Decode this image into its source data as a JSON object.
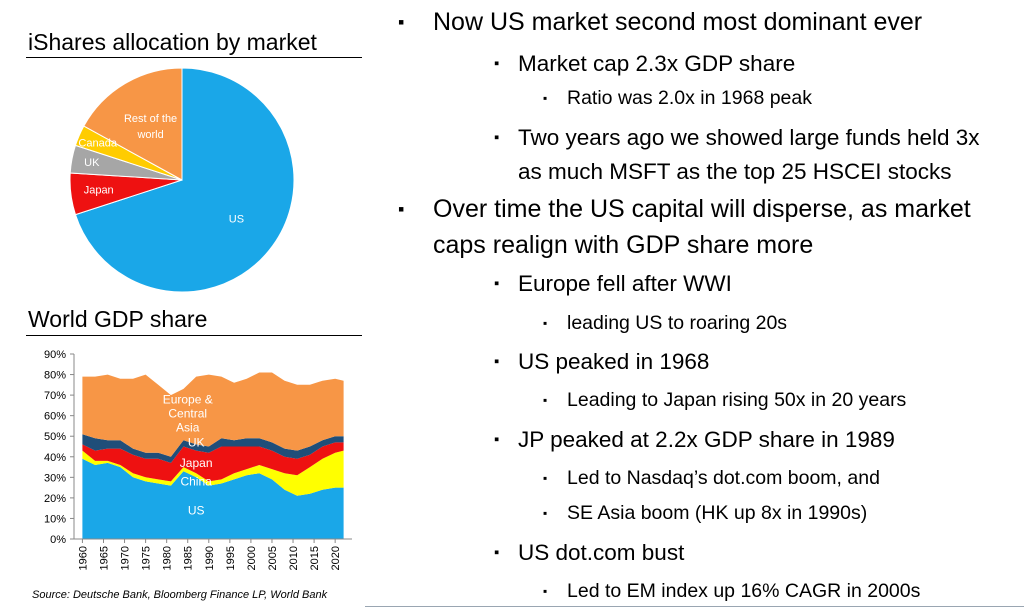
{
  "charts": {
    "pie_title": "iShares allocation by market",
    "gdp_title": "World GDP share",
    "source": "Source: Deutsche Bank, Bloomberg Finance LP, World Bank"
  },
  "chart_data": [
    {
      "type": "pie",
      "title": "iShares allocation by market",
      "labels": [
        "US",
        "Japan",
        "UK",
        "Canada",
        "Rest of the world"
      ],
      "values": [
        70,
        6,
        4,
        3,
        17
      ],
      "colors": [
        "#1aa7e8",
        "#ee1111",
        "#a6a6a6",
        "#ffcc00",
        "#f79646"
      ]
    },
    {
      "type": "area",
      "title": "World GDP share",
      "stacked": true,
      "x": [
        1960,
        1963,
        1966,
        1969,
        1972,
        1975,
        1978,
        1981,
        1984,
        1987,
        1990,
        1993,
        1996,
        1999,
        2002,
        2005,
        2008,
        2011,
        2014,
        2017,
        2020,
        2022
      ],
      "ylim": [
        0,
        90
      ],
      "yticks": [
        "0%",
        "10%",
        "20%",
        "30%",
        "40%",
        "50%",
        "60%",
        "70%",
        "80%",
        "90%"
      ],
      "xticks": [
        "1960",
        "1965",
        "1970",
        "1975",
        "1980",
        "1985",
        "1990",
        "1995",
        "2000",
        "2005",
        "2010",
        "2015",
        "2020"
      ],
      "series": [
        {
          "name": "US",
          "color": "#1aa7e8",
          "values": [
            39,
            36,
            37,
            35,
            30,
            28,
            27,
            26,
            33,
            30,
            26,
            27,
            29,
            31,
            32,
            29,
            24,
            21,
            22,
            24,
            25,
            25
          ]
        },
        {
          "name": "China",
          "color": "#ffff00",
          "values": [
            4,
            2,
            1,
            1,
            2,
            2,
            2,
            2,
            2,
            2,
            2,
            2,
            3,
            3,
            4,
            5,
            8,
            10,
            13,
            15,
            17,
            18
          ]
        },
        {
          "name": "Japan",
          "color": "#ee1111",
          "values": [
            3,
            5,
            6,
            8,
            9,
            9,
            10,
            9,
            10,
            11,
            14,
            16,
            13,
            11,
            9,
            9,
            8,
            8,
            6,
            6,
            5,
            4
          ]
        },
        {
          "name": "UK",
          "color": "#1f4e79",
          "values": [
            5,
            6,
            4,
            4,
            3,
            3,
            3,
            3,
            3,
            3,
            3,
            4,
            3,
            4,
            4,
            4,
            4,
            4,
            4,
            3,
            3,
            3
          ]
        },
        {
          "name": "Europe & Central Asia",
          "color": "#f79646",
          "values": [
            28,
            30,
            32,
            30,
            34,
            38,
            33,
            30,
            25,
            33,
            35,
            30,
            28,
            29,
            32,
            34,
            33,
            32,
            30,
            29,
            28,
            27
          ]
        }
      ],
      "annotations": [
        "Europe & Central Asia",
        "UK",
        "Japan",
        "China",
        "US"
      ]
    }
  ],
  "bullets": [
    {
      "level": 1,
      "marker": "▪",
      "lines": [
        "Now US market second most dominant ever"
      ]
    },
    {
      "level": 2,
      "marker": "▪",
      "lines": [
        "Market cap 2.3x GDP share"
      ]
    },
    {
      "level": 3,
      "marker": "▪",
      "lines": [
        "Ratio was 2.0x in 1968 peak"
      ]
    },
    {
      "level": 2,
      "marker": "▪",
      "lines": [
        "Two years ago we showed large funds held 3x",
        "as much MSFT as the top 25 HSCEI stocks"
      ]
    },
    {
      "level": 1,
      "marker": "▪",
      "lines": [
        "Over time the US capital will disperse, as market",
        "caps realign with GDP share more"
      ]
    },
    {
      "level": 2,
      "marker": "▪",
      "lines": [
        "Europe fell after WWI"
      ]
    },
    {
      "level": 3,
      "marker": "▪",
      "lines": [
        "leading US to roaring 20s"
      ]
    },
    {
      "level": 2,
      "marker": "▪",
      "lines": [
        "US peaked in 1968"
      ]
    },
    {
      "level": 3,
      "marker": "▪",
      "lines": [
        "Leading to Japan rising 50x in 20 years"
      ]
    },
    {
      "level": 2,
      "marker": "▪",
      "lines": [
        "JP peaked at 2.2x GDP share in 1989"
      ]
    },
    {
      "level": 3,
      "marker": "▪",
      "lines": [
        "Led to Nasdaq’s dot.com boom, and"
      ]
    },
    {
      "level": 3,
      "marker": "▪",
      "lines": [
        "SE Asia boom (HK up 8x in 1990s)"
      ]
    },
    {
      "level": 2,
      "marker": "▪",
      "lines": [
        "US dot.com bust"
      ]
    },
    {
      "level": 3,
      "marker": "▪",
      "lines": [
        "Led to EM index up 16% CAGR in 2000s"
      ]
    }
  ]
}
